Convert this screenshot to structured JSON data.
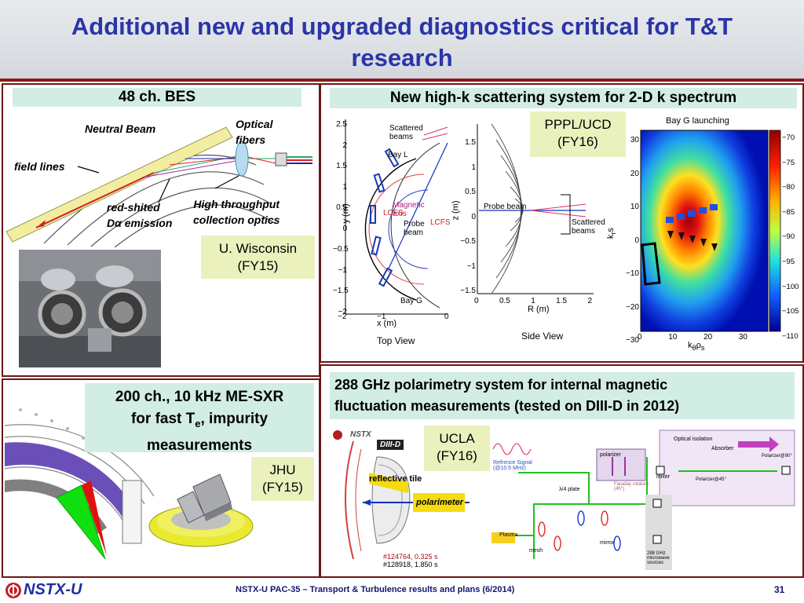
{
  "slide": {
    "title": "Additional new and upgraded diagnostics critical for T&T research",
    "page_number": "31",
    "footer": "NSTX-U PAC-35 – Transport & Turbulence results and plans (6/2014)",
    "logo_text": "NSTX-U",
    "accent_color": "#2a35a6",
    "rule_color": "#8b1a1a"
  },
  "bes": {
    "heading": "48 ch. BES",
    "neutral_beam": "Neutral Beam",
    "optical_fibers": "Optical fibers",
    "field_lines": "field lines",
    "red_shifted_line1": "red-shited",
    "red_shifted_line2_prefix": "D",
    "red_shifted_line2_alpha": "α",
    "red_shifted_line2_suffix": " emission",
    "collection_optics_line1": "High throughput",
    "collection_optics_line2": "collection optics",
    "affiliation_line1": "U. Wisconsin",
    "affiliation_line2": "(FY15)"
  },
  "highk": {
    "heading": "New high-k scattering system for 2-D k spectrum",
    "affiliation_line1": "PPPL/UCD",
    "affiliation_line2": "(FY16)",
    "top_view": {
      "caption": "Top View",
      "ylabel": "y (m)",
      "xlabel": "x (m)",
      "yticks": [
        "2.5",
        "2",
        "1.5",
        "1",
        "0.5",
        "0",
        "−0.5",
        "−1",
        "−1.5",
        "−2"
      ],
      "xticks": [
        "−2",
        "−1",
        "0"
      ],
      "scattered_beams": "Scattered beams",
      "bay_l": "Bay L",
      "bay_g": "Bay G",
      "magnetic_axis": "Magnetic axis",
      "lcfs_left": "LCFS",
      "lcfs_right": "LCFS",
      "probe_beam": "Probe beam"
    },
    "side_view": {
      "caption": "Side View",
      "ylabel": "z (m)",
      "xlabel": "R (m)",
      "yticks": [
        "1.5",
        "1",
        "0.5",
        "0",
        "−0.5",
        "−1",
        "−1.5"
      ],
      "xticks": [
        "0",
        "0.5",
        "1",
        "1.5",
        "2"
      ],
      "probe_beam": "Probe beam",
      "scattered_beams": "Scattered beams"
    },
    "heatmap": {
      "title": "Bay G launching",
      "ylabel_main": "k",
      "ylabel_sub": "r",
      "ylabel_s": "s",
      "xlabel_main": "k",
      "xlabel_theta": "θ",
      "xlabel_rho": "ρ",
      "xlabel_s": "s",
      "yticks": [
        "30",
        "20",
        "10",
        "0",
        "−10",
        "−20",
        "−30"
      ],
      "xticks": [
        "0",
        "10",
        "20",
        "30"
      ],
      "colorbar_ticks": [
        "−70",
        "−75",
        "−80",
        "−85",
        "−90",
        "−95",
        "−100",
        "−105",
        "−110"
      ]
    }
  },
  "sxr": {
    "heading_line1": "200 ch., 10 kHz ME-SXR",
    "heading_line2_prefix": "for fast T",
    "heading_line2_sub": "e",
    "heading_line2_suffix": ", impurity",
    "heading_line3": "measurements",
    "affiliation_line1": "JHU",
    "affiliation_line2": "(FY15)"
  },
  "polarimetry": {
    "heading_line1": "288 GHz polarimetry system for internal magnetic",
    "heading_line2": "fluctuation measurements (tested on DIII-D in 2012)",
    "affiliation_line1": "UCLA",
    "affiliation_line2": "(FY16)",
    "nstx_label": "NSTX",
    "diiid_label": "DIII-D",
    "reflective_tile": "reflective tile",
    "polarimeter": "polarimeter",
    "shot_line1": "#124764, 0.325 s",
    "shot_line2": "#128918, 1.850 s",
    "reference_signal": "Refrence Signal (@10.5 MHz)",
    "polarizer": "polarizer",
    "faraday_rotators": "Faraday rotators (45°)",
    "mixer": "mixer",
    "lambda_plate": "λ/4 plate",
    "plasma": "Plasma",
    "mesh": "mesh",
    "mirror": "mirror",
    "sources": "288 GHz microwave sources",
    "optical_isolation": "Optical isolation",
    "absorber": "Absorber",
    "polarizer_90": "Polarizer@90°",
    "polarizer_45": "Polarizer@45°"
  }
}
